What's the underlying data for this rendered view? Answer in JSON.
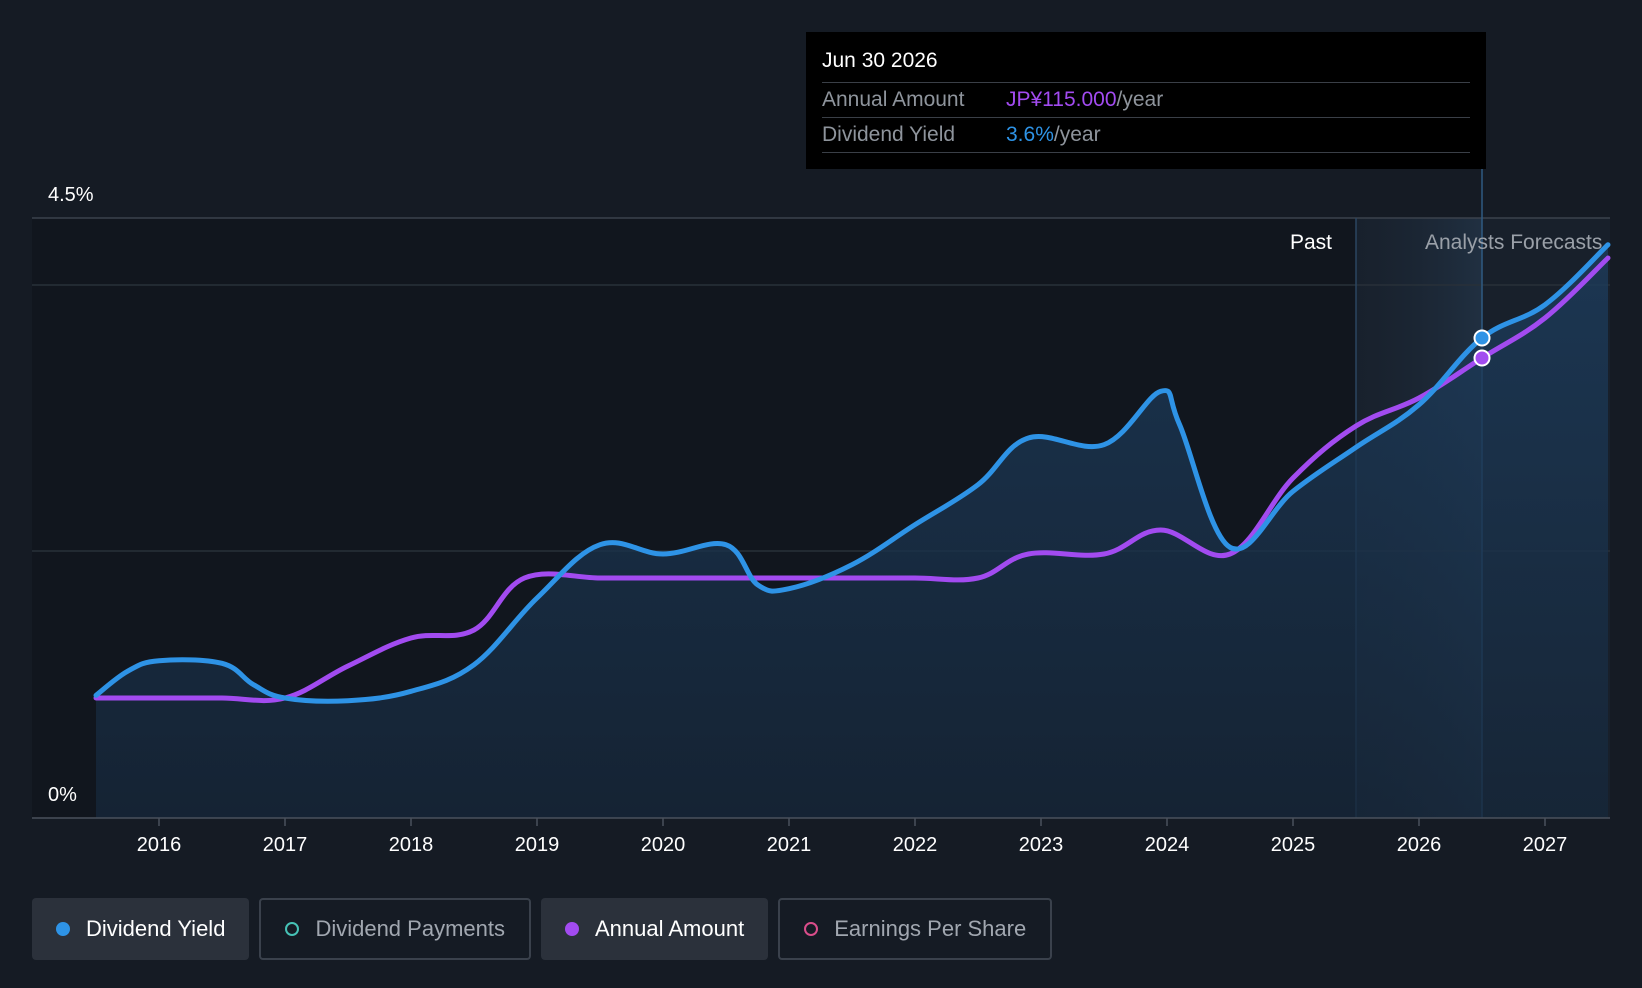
{
  "tooltip": {
    "date": "Jun 30 2026",
    "rows": [
      {
        "label": "Annual Amount",
        "value": "JP¥115.000",
        "unit": "/year"
      },
      {
        "label": "Dividend Yield",
        "value": "3.6%",
        "unit": "/year"
      }
    ]
  },
  "legend": [
    {
      "label": "Dividend Yield",
      "color": "#2e93e6",
      "active": true,
      "filled": true
    },
    {
      "label": "Dividend Payments",
      "color": "#46c2b6",
      "active": false,
      "filled": false
    },
    {
      "label": "Annual Amount",
      "color": "#a24bf0",
      "active": true,
      "filled": true
    },
    {
      "label": "Earnings Per Share",
      "color": "#d94d8a",
      "active": false,
      "filled": false
    }
  ],
  "chart_data": {
    "type": "line",
    "y_axis_labels": [
      "4.5%",
      "0%"
    ],
    "ylim": [
      0,
      4.5
    ],
    "xlim": [
      2015.5,
      2027.5
    ],
    "x_ticks": [
      "2016",
      "2017",
      "2018",
      "2019",
      "2020",
      "2021",
      "2022",
      "2023",
      "2024",
      "2025",
      "2026",
      "2027"
    ],
    "region_labels": {
      "past": "Past",
      "forecast": "Analysts Forecasts"
    },
    "forecast_start": 2025.5,
    "highlight_x": 2026.5,
    "colors": {
      "dividend_yield": "#2e93e6",
      "annual_amount": "#a24bf0"
    },
    "series": [
      {
        "name": "Dividend Yield",
        "unit": "%",
        "x": [
          2015.5,
          2015.75,
          2016.0,
          2016.5,
          2016.75,
          2017.0,
          2017.5,
          2018.0,
          2018.5,
          2019.0,
          2019.5,
          2020.0,
          2020.5,
          2020.75,
          2021.0,
          2021.5,
          2022.0,
          2022.5,
          2022.9,
          2023.5,
          2023.95,
          2024.1,
          2024.5,
          2025.0,
          2025.5,
          2026.0,
          2026.5,
          2027.0,
          2027.5
        ],
        "values": [
          0.92,
          1.1,
          1.18,
          1.16,
          1.0,
          0.9,
          0.88,
          0.95,
          1.15,
          1.65,
          2.05,
          1.98,
          2.05,
          1.75,
          1.72,
          1.9,
          2.2,
          2.5,
          2.85,
          2.8,
          3.2,
          2.95,
          2.03,
          2.45,
          2.78,
          3.1,
          3.6,
          3.85,
          4.3
        ]
      },
      {
        "name": "Annual Amount",
        "unit": "JP¥/year",
        "x": [
          2015.5,
          2016.0,
          2016.5,
          2017.0,
          2017.5,
          2018.0,
          2018.5,
          2018.9,
          2019.5,
          2020.0,
          2020.5,
          2021.0,
          2021.5,
          2022.0,
          2022.5,
          2022.9,
          2023.5,
          2023.95,
          2024.5,
          2025.0,
          2025.5,
          2026.0,
          2026.5,
          2027.0,
          2027.5
        ],
        "values": [
          30,
          30,
          30,
          30,
          38,
          45,
          47,
          60,
          60,
          60,
          60,
          60,
          60,
          60,
          60,
          66,
          66,
          72,
          66,
          85,
          98,
          105,
          115,
          125,
          140
        ]
      }
    ]
  }
}
